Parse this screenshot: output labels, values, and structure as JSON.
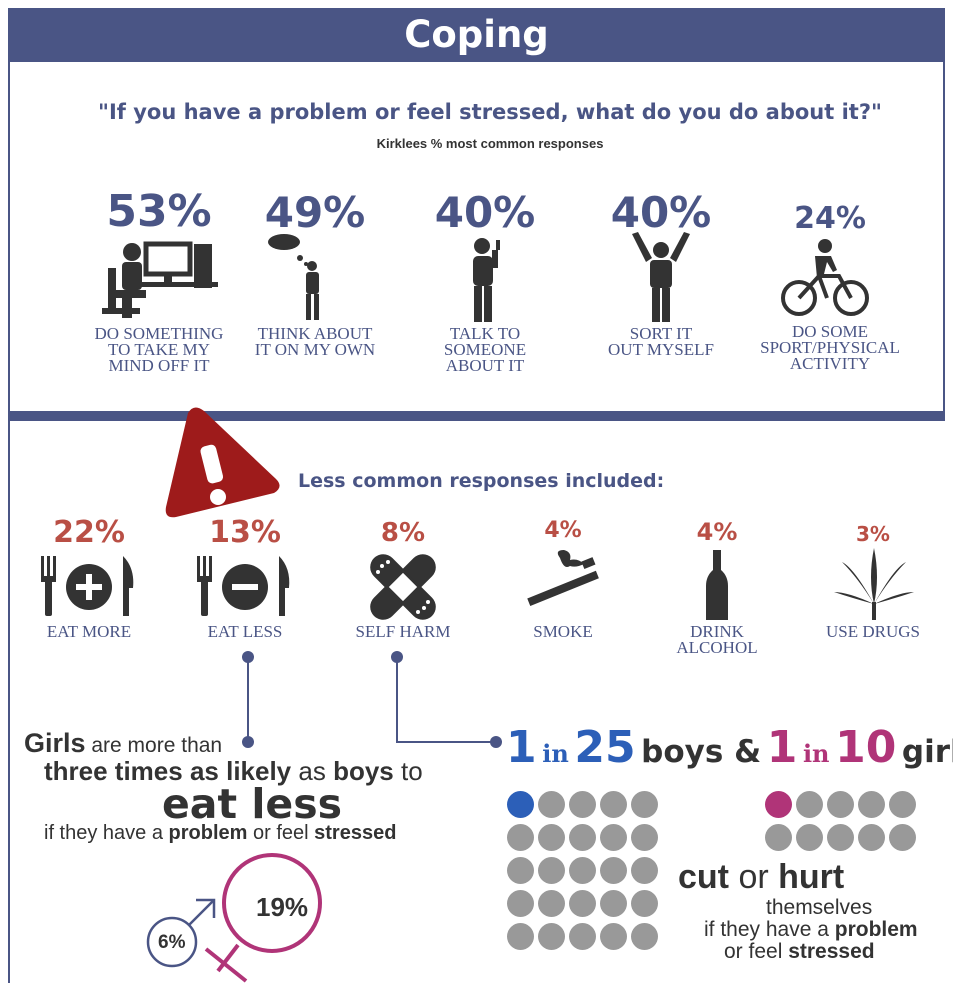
{
  "header": {
    "title": "Coping"
  },
  "question": "\"If you have a problem or feel stressed, what do you do about it?\"",
  "subtitle": "Kirklees % most common responses",
  "top_responses": [
    {
      "pct": "53%",
      "line1": "DO SOMETHING",
      "line2": "TO TAKE MY",
      "line3": "MIND OFF IT",
      "icon": "computer-desk-icon"
    },
    {
      "pct": "49%",
      "line1": "THINK ABOUT",
      "line2": "IT ON MY OWN",
      "line3": "",
      "icon": "thinking-person-icon"
    },
    {
      "pct": "40%",
      "line1": "TALK TO",
      "line2": "SOMEONE",
      "line3": "ABOUT IT",
      "icon": "phone-person-icon"
    },
    {
      "pct": "40%",
      "line1": "SORT IT",
      "line2": "OUT MYSELF",
      "line3": "",
      "icon": "arms-raised-person-icon"
    },
    {
      "pct": "24%",
      "line1": "DO SOME",
      "line2": "SPORT/PHYSICAL",
      "line3": "ACTIVITY",
      "icon": "cyclist-icon"
    }
  ],
  "less_common_title": "Less common responses included:",
  "less_responses": [
    {
      "pct": "22%",
      "line1": "EAT MORE",
      "line2": "",
      "icon": "eat-more-icon"
    },
    {
      "pct": "13%",
      "line1": "EAT LESS",
      "line2": "",
      "icon": "eat-less-icon"
    },
    {
      "pct": "8%",
      "line1": "SELF HARM",
      "line2": "",
      "icon": "bandage-icon"
    },
    {
      "pct": "4%",
      "line1": "SMOKE",
      "line2": "",
      "icon": "cigarette-icon"
    },
    {
      "pct": "4%",
      "line1": "DRINK",
      "line2": "ALCOHOL",
      "icon": "bottle-icon"
    },
    {
      "pct": "3%",
      "line1": "USE DRUGS",
      "line2": "",
      "icon": "cannabis-leaf-icon"
    }
  ],
  "girls_stat": {
    "l1a": "Girls",
    "l1b": " are more than",
    "l2a": "three times as likely",
    "l2b": " as ",
    "l2c": "boys",
    "l2d": " to",
    "l3": "eat less",
    "l4a": "if they have a ",
    "l4b": "problem",
    "l4c": " or feel ",
    "l4d": "stressed",
    "girls_pct": "19%",
    "boys_pct": "6%"
  },
  "ratio": {
    "boys_num": "1",
    "in1": "in",
    "boys_den": "25",
    "boys_word": "boys &",
    "girls_num": "1",
    "in2": "in",
    "girls_den": "10",
    "girls_word": "girls"
  },
  "cut": {
    "l1a": "cut",
    "l1b": " or ",
    "l1c": "hurt",
    "l2": "themselves",
    "l3a": "if they have a ",
    "l3b": "problem",
    "l4a": "or feel ",
    "l4b": "stressed"
  },
  "colors": {
    "navy": "#4a5585",
    "red": "#b94f45",
    "blue": "#2c5fb8",
    "magenta": "#b03478",
    "gray": "#999999",
    "dark": "#333333"
  }
}
